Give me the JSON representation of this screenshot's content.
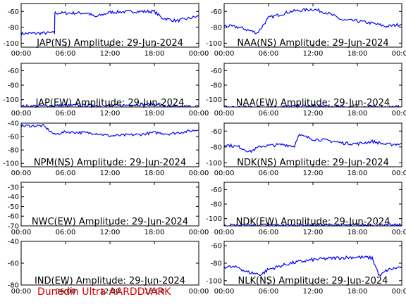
{
  "footer": "Dunedin Ultra AARDDVARK",
  "colors": {
    "trace": "#0000ff",
    "axis": "#000000",
    "footer": "#dd0000"
  },
  "xticks": [
    "00:00",
    "06:00",
    "12:00",
    "18:00",
    "00:00"
  ],
  "chart_data": [
    {
      "type": "line",
      "title": "JAP(NS) Amplitude: 29-Jun-2024",
      "xlabel": "",
      "ylabel": "",
      "xlim": [
        0,
        24
      ],
      "ylim": [
        -105,
        -50
      ],
      "yticks": [
        "-60",
        "-80",
        "-100"
      ],
      "series": [
        {
          "x": [
            0,
            4.5,
            4.6,
            9,
            10,
            12,
            15,
            18,
            19,
            21,
            24
          ],
          "y": [
            -88,
            -87,
            -62,
            -62,
            -67,
            -61,
            -60,
            -60,
            -68,
            -72,
            -66
          ]
        }
      ]
    },
    {
      "type": "line",
      "title": "NAA(NS) Amplitude: 29-Jun-2024",
      "xlabel": "",
      "ylabel": "",
      "xlim": [
        0,
        24
      ],
      "ylim": [
        -105,
        -50
      ],
      "yticks": [
        "-60",
        "-80",
        "-100"
      ],
      "series": [
        {
          "x": [
            0,
            2,
            4.5,
            6,
            9,
            12,
            14,
            16,
            18,
            20,
            22,
            24
          ],
          "y": [
            -78,
            -80,
            -87,
            -68,
            -60,
            -57,
            -62,
            -71,
            -72,
            -75,
            -79,
            -76
          ]
        }
      ]
    },
    {
      "type": "line",
      "title": "JAP(EW) Amplitude: 29-Jun-2024",
      "xlabel": "",
      "ylabel": "",
      "xlim": [
        0,
        24
      ],
      "ylim": [
        -110,
        -50
      ],
      "yticks": [
        "-60",
        "-80",
        "-100"
      ],
      "series": [
        {
          "x": [
            0,
            4.5,
            10,
            12,
            15,
            18,
            20,
            24
          ],
          "y": [
            -109,
            -108,
            -108,
            -109,
            -107,
            -106,
            -110,
            -109
          ]
        }
      ]
    },
    {
      "type": "line",
      "title": "NAA(EW) Amplitude: 29-Jun-2024",
      "xlabel": "",
      "ylabel": "",
      "xlim": [
        0,
        24
      ],
      "ylim": [
        -110,
        -50
      ],
      "yticks": [
        "-60",
        "-80",
        "-100"
      ],
      "series": [
        {
          "x": [
            0,
            4.5,
            10,
            12,
            15,
            18,
            24
          ],
          "y": [
            -110,
            -110,
            -109,
            -109,
            -110,
            -110,
            -110
          ]
        }
      ]
    },
    {
      "type": "line",
      "title": "NPM(NS) Amplitude: 29-Jun-2024",
      "xlabel": "",
      "ylabel": "",
      "xlim": [
        0,
        24
      ],
      "ylim": [
        -105,
        -40
      ],
      "yticks": [
        "-40",
        "-60",
        "-80",
        "-100"
      ],
      "series": [
        {
          "x": [
            0,
            3,
            4.5,
            6,
            10,
            12,
            14,
            16,
            18,
            20,
            22,
            24
          ],
          "y": [
            -44,
            -44,
            -57,
            -53,
            -55,
            -59,
            -58,
            -57,
            -54,
            -56,
            -53,
            -50
          ]
        }
      ]
    },
    {
      "type": "line",
      "title": "NDK(NS) Amplitude: 29-Jun-2024",
      "xlabel": "",
      "ylabel": "",
      "xlim": [
        0,
        24
      ],
      "ylim": [
        -105,
        -50
      ],
      "yticks": [
        "-60",
        "-80",
        "-100"
      ],
      "series": [
        {
          "x": [
            0,
            2,
            3.5,
            5,
            8,
            9.5,
            10,
            12,
            14,
            16,
            18,
            20,
            22,
            24
          ],
          "y": [
            -77,
            -80,
            -86,
            -79,
            -77,
            -79,
            -65,
            -70,
            -72,
            -75,
            -76,
            -73,
            -77,
            -76
          ]
        }
      ]
    },
    {
      "type": "line",
      "title": "NWC(EW) Amplitude: 29-Jun-2024",
      "xlabel": "",
      "ylabel": "",
      "xlim": [
        0,
        24
      ],
      "ylim": [
        -70,
        -25
      ],
      "yticks": [
        "-30",
        "-40",
        "-50",
        "-60",
        "-70"
      ],
      "series": []
    },
    {
      "type": "line",
      "title": "NDK(EW) Amplitude: 29-Jun-2024",
      "xlabel": "",
      "ylabel": "",
      "xlim": [
        0,
        24
      ],
      "ylim": [
        -110,
        -50
      ],
      "yticks": [
        "-60",
        "-80",
        "-100"
      ],
      "series": [
        {
          "x": [
            0,
            6,
            12,
            18,
            24
          ],
          "y": [
            -109,
            -109,
            -109,
            -109,
            -109
          ]
        }
      ]
    },
    {
      "type": "line",
      "title": "IND(EW) Amplitude: 29-Jun-2024",
      "xlabel": "",
      "ylabel": "",
      "xlim": [
        0,
        24
      ],
      "ylim": [
        -80,
        -40
      ],
      "yticks": [
        "-40",
        "-60",
        "-80"
      ],
      "series": []
    },
    {
      "type": "line",
      "title": "NLK(NS) Amplitude: 29-Jun-2024",
      "xlabel": "",
      "ylabel": "",
      "xlim": [
        0,
        24
      ],
      "ylim": [
        -105,
        -55
      ],
      "yticks": [
        "-60",
        "-80",
        "-100"
      ],
      "series": [
        {
          "x": [
            0,
            2,
            3,
            5,
            6,
            9,
            12,
            15,
            18,
            20,
            21,
            22,
            24
          ],
          "y": [
            -84,
            -85,
            -90,
            -93,
            -87,
            -80,
            -76,
            -74,
            -73,
            -74,
            -95,
            -88,
            -84
          ]
        }
      ]
    }
  ]
}
